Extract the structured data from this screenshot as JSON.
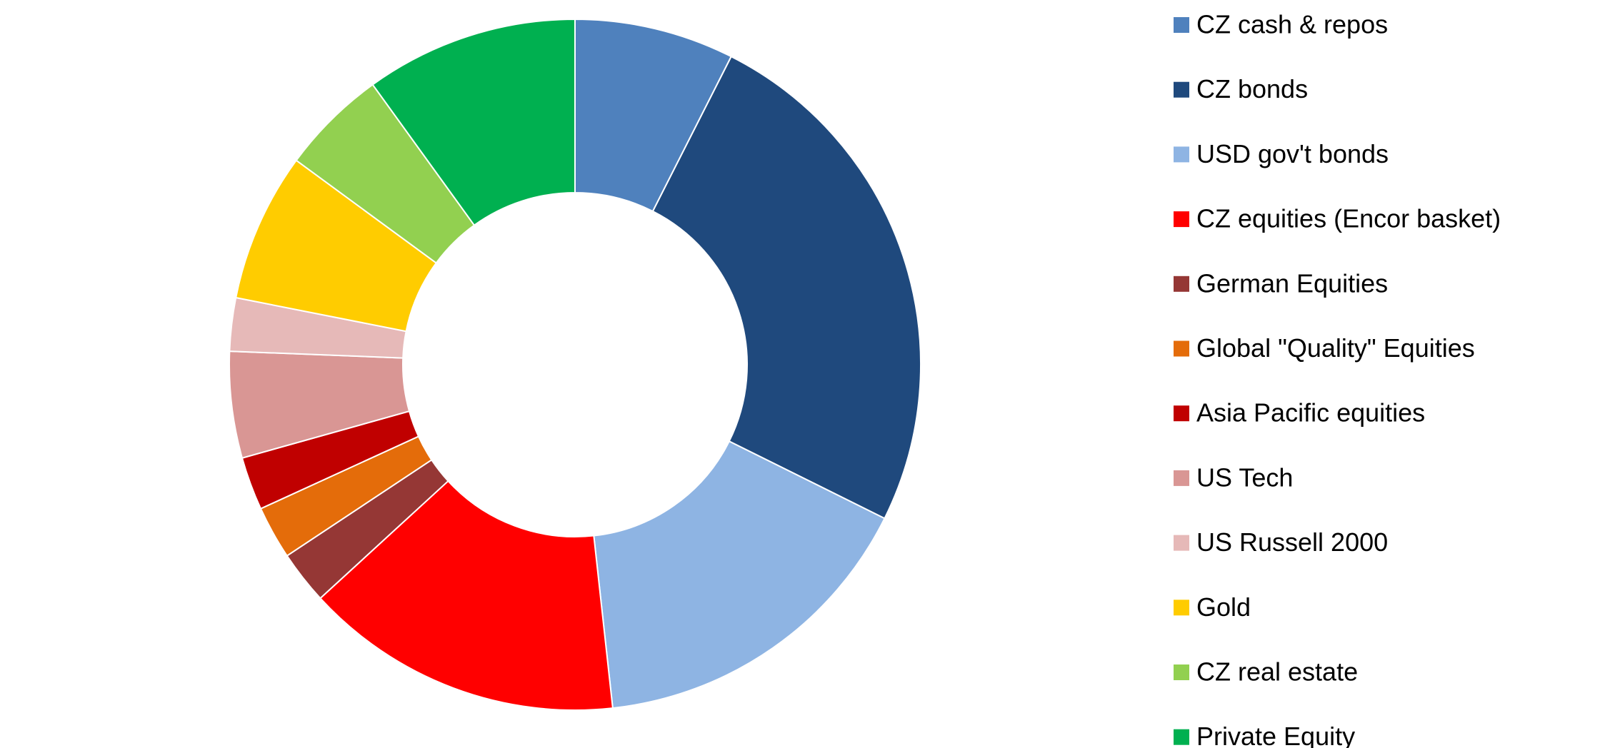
{
  "chart_data": {
    "type": "donut",
    "categories": [
      "CZ cash & repos",
      "CZ bonds",
      "USD gov't bonds",
      "CZ equities (Encor basket)",
      "German Equities",
      "Global \"Quality\" Equities",
      "Asia Pacific equities",
      "US Tech",
      "US Russell 2000",
      "Gold",
      "CZ real estate",
      "Private Equity"
    ],
    "values": [
      7.5,
      25,
      16,
      15,
      2.5,
      2.5,
      2.5,
      5,
      2.5,
      7,
      5,
      10
    ],
    "colors": [
      "#4f81bd",
      "#1f497d",
      "#8eb4e3",
      "#ff0000",
      "#953735",
      "#e46c0a",
      "#c00000",
      "#d99694",
      "#e6b9b8",
      "#ffcc00",
      "#92d050",
      "#00b050"
    ],
    "legend": "right"
  }
}
